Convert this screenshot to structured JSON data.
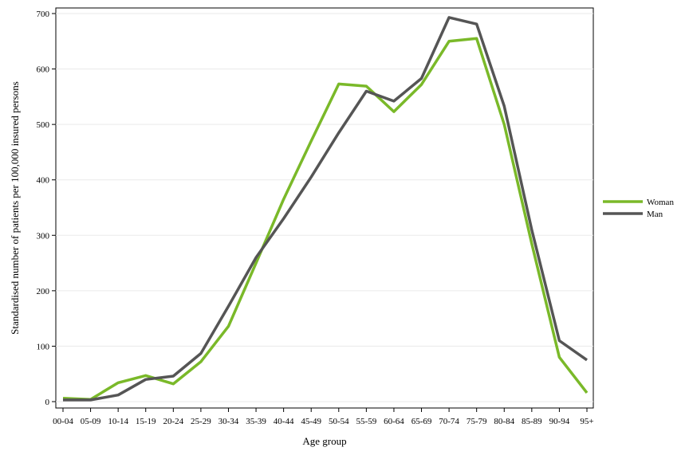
{
  "chart_data": {
    "type": "line",
    "categories": [
      "00-04",
      "05-09",
      "10-14",
      "15-19",
      "20-24",
      "25-29",
      "30-34",
      "35-39",
      "40-44",
      "45-49",
      "50-54",
      "55-59",
      "60-64",
      "65-69",
      "70-74",
      "75-79",
      "80-84",
      "85-89",
      "90-94",
      "95+"
    ],
    "series": [
      {
        "name": "Woman",
        "color": "#7ab929",
        "values": [
          6,
          4,
          34,
          47,
          32,
          72,
          136,
          250,
          365,
          470,
          573,
          569,
          523,
          572,
          650,
          655,
          500,
          285,
          80,
          16
        ]
      },
      {
        "name": "Man",
        "color": "#555555",
        "values": [
          3,
          3,
          12,
          40,
          46,
          87,
          172,
          260,
          330,
          405,
          485,
          560,
          542,
          583,
          693,
          681,
          533,
          310,
          110,
          75
        ]
      }
    ],
    "xlabel": "Age group",
    "ylabel": "Standardised number of patients per 100,000 insured persons",
    "ylim": [
      0,
      700
    ],
    "yticks": [
      0,
      100,
      200,
      300,
      400,
      500,
      600,
      700
    ],
    "grid": true,
    "legend_position": "right"
  }
}
